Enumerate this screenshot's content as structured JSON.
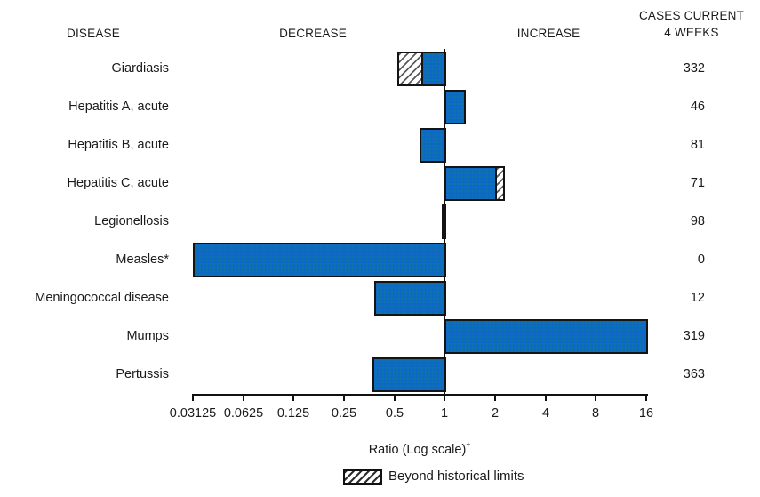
{
  "headers": {
    "disease": "DISEASE",
    "decrease": "DECREASE",
    "increase": "INCREASE",
    "cases_line1": "CASES CURRENT",
    "cases_line2": "4 WEEKS"
  },
  "colors": {
    "bar_fill": "#0e68c4",
    "bar_border": "#141414",
    "text": "#1a1a1a"
  },
  "chart_data": {
    "type": "bar",
    "orientation": "horizontal",
    "scale": "log2",
    "baseline_ratio": 1,
    "xlabel": "Ratio (Log scale)",
    "xlabel_dagger": "†",
    "xlim": [
      0.03125,
      16
    ],
    "x_tick_labels": [
      "0.03125",
      "0.0625",
      "0.125",
      "0.25",
      "0.5",
      "1",
      "2",
      "4",
      "8",
      "16"
    ],
    "grid": false,
    "legend_position": "bottom",
    "legend_label": "Beyond historical limits",
    "rows": [
      {
        "label": "Giardiasis",
        "ratio": 0.52,
        "beyond_limits_to": 0.72,
        "cases": 332
      },
      {
        "label": "Hepatitis A, acute",
        "ratio": 1.31,
        "beyond_limits_to": null,
        "cases": 46
      },
      {
        "label": "Hepatitis B, acute",
        "ratio": 0.71,
        "beyond_limits_to": null,
        "cases": 81
      },
      {
        "label": "Hepatitis C, acute",
        "ratio": 2.25,
        "beyond_limits_to": 2.02,
        "cases": 71
      },
      {
        "label": "Legionellosis",
        "ratio": 0.96,
        "beyond_limits_to": null,
        "cases": 98
      },
      {
        "label": "Measles*",
        "ratio": 0.03125,
        "beyond_limits_to": null,
        "cases": 0
      },
      {
        "label": "Meningococcal disease",
        "ratio": 0.38,
        "beyond_limits_to": null,
        "cases": 12
      },
      {
        "label": "Mumps",
        "ratio": 16,
        "beyond_limits_to": null,
        "cases": 319
      },
      {
        "label": "Pertussis",
        "ratio": 0.37,
        "beyond_limits_to": null,
        "cases": 363
      }
    ]
  }
}
